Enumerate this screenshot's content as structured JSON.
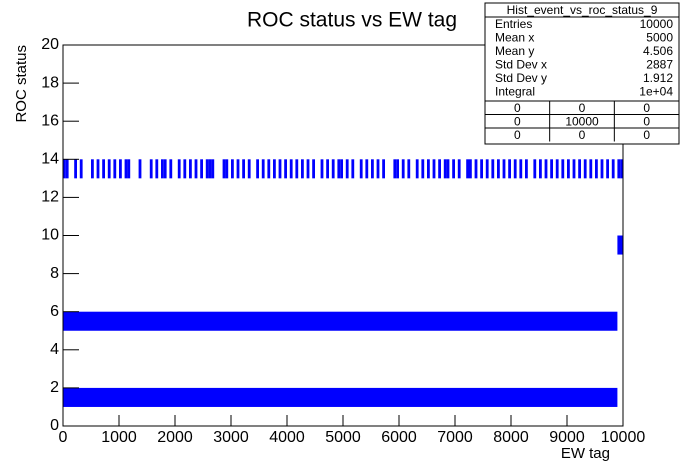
{
  "chart_data": {
    "type": "histogram2d",
    "title": "ROC status vs EW tag",
    "x_label": "EW tag",
    "y_label": "ROC status",
    "xlim": [
      0,
      10000
    ],
    "ylim": [
      0,
      20
    ],
    "xticks": [
      0,
      1000,
      2000,
      3000,
      4000,
      5000,
      6000,
      7000,
      8000,
      9000,
      10000
    ],
    "yticks": [
      0,
      2,
      4,
      6,
      8,
      10,
      12,
      14,
      16,
      18,
      20
    ],
    "color": "#0000ff",
    "boxes": [
      {
        "xlim": [
          0,
          9900
        ],
        "ylim": [
          1,
          2
        ]
      },
      {
        "xlim": [
          0,
          9900
        ],
        "ylim": [
          5,
          6
        ]
      },
      {
        "xlim": [
          9900,
          10000
        ],
        "ylim": [
          9,
          10
        ]
      }
    ],
    "stripes": {
      "ylim": [
        13,
        14
      ],
      "bin_width": 50,
      "x": [
        0,
        50,
        200,
        300,
        500,
        600,
        700,
        800,
        900,
        1000,
        1100,
        1150,
        1350,
        1550,
        1650,
        1750,
        1800,
        1900,
        2050,
        2150,
        2250,
        2350,
        2450,
        2550,
        2600,
        2650,
        2850,
        2900,
        3000,
        3100,
        3200,
        3300,
        3450,
        3550,
        3650,
        3750,
        3850,
        3950,
        4050,
        4150,
        4250,
        4350,
        4450,
        4600,
        4700,
        4800,
        4900,
        4950,
        5050,
        5150,
        5300,
        5400,
        5500,
        5600,
        5700,
        5900,
        5950,
        6050,
        6150,
        6300,
        6400,
        6500,
        6600,
        6700,
        6800,
        6850,
        6950,
        7050,
        7200,
        7250,
        7350,
        7450,
        7550,
        7650,
        7750,
        7850,
        7950,
        8050,
        8150,
        8250,
        8400,
        8500,
        8600,
        8700,
        8800,
        8900,
        9000,
        9100,
        9200,
        9300,
        9400,
        9500,
        9600,
        9700,
        9800,
        9900,
        9950
      ]
    },
    "stats": {
      "title": "Hist_event_vs_roc_status_9",
      "rows": [
        [
          "Entries",
          "10000"
        ],
        [
          "Mean x",
          "5000"
        ],
        [
          "Mean y",
          "4.506"
        ],
        [
          "Std Dev x",
          "2887"
        ],
        [
          "Std Dev y",
          "1.912"
        ],
        [
          "Integral",
          "1e+04"
        ]
      ],
      "grid": [
        [
          "0",
          "0",
          "0"
        ],
        [
          "0",
          "10000",
          "0"
        ],
        [
          "0",
          "0",
          "0"
        ]
      ]
    }
  }
}
